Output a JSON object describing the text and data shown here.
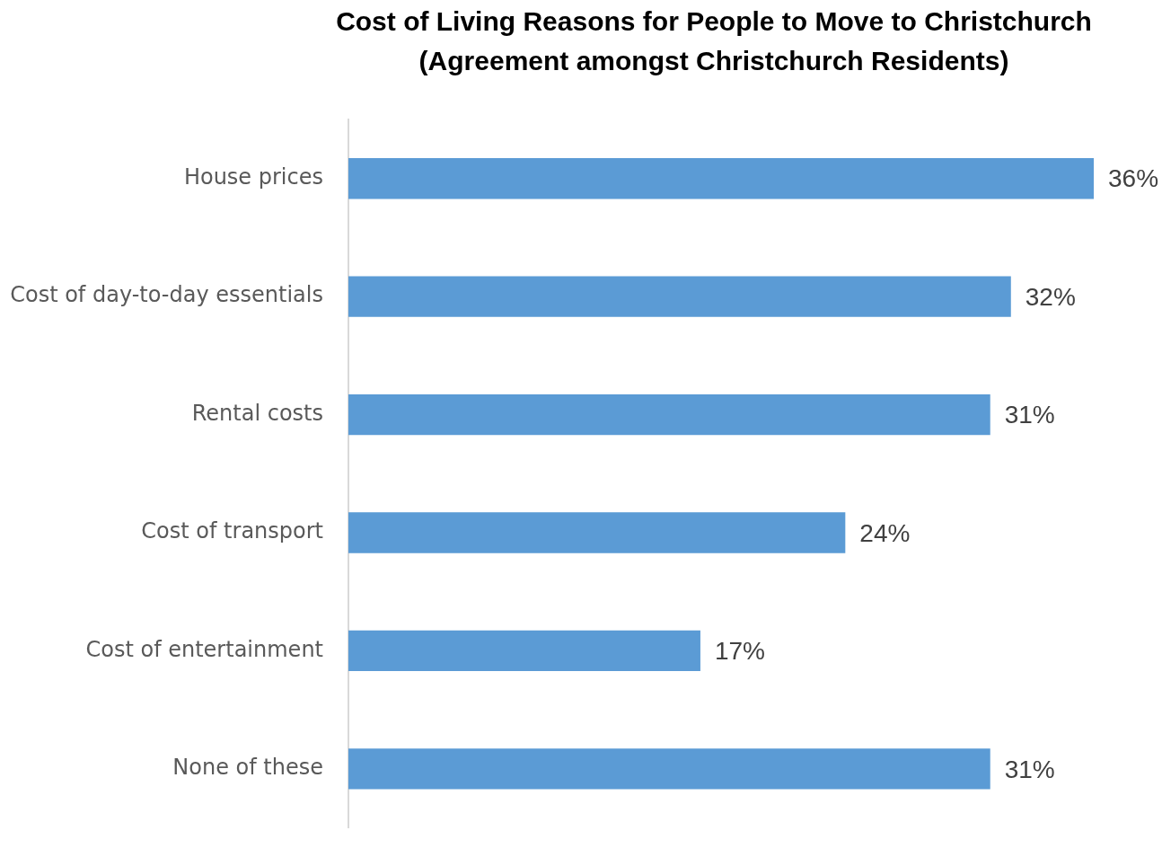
{
  "chart_data": {
    "type": "bar",
    "orientation": "horizontal",
    "title": "Cost of Living Reasons for People to Move to Christchurch\n(Agreement amongst Christchurch Residents)",
    "categories": [
      "House prices",
      "Cost of day-to-day essentials",
      "Rental costs",
      "Cost of transport",
      "Cost of entertainment",
      "None of these"
    ],
    "values": [
      36,
      32,
      31,
      24,
      17,
      31
    ],
    "value_labels": [
      "36%",
      "32%",
      "31%",
      "24%",
      "17%",
      "31%"
    ],
    "color": "#5b9bd5",
    "xlim": [
      0,
      36
    ],
    "tick_labels": "y",
    "grid": false,
    "legend": false
  }
}
